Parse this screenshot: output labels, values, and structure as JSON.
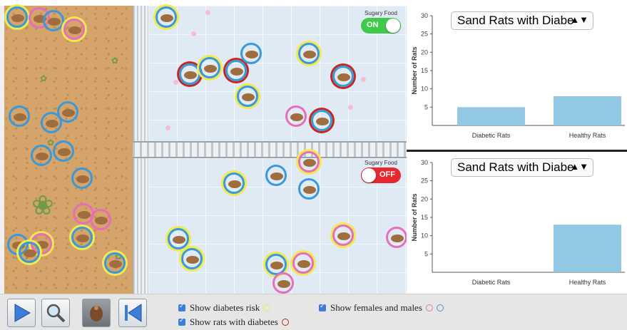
{
  "toggles": {
    "top": {
      "label": "Sugary Food",
      "state": "ON"
    },
    "bottom": {
      "label": "Sugary Food",
      "state": "OFF"
    }
  },
  "charts": {
    "top": {
      "dropdown_value": "Sand Rats with Diabe"
    },
    "bottom": {
      "dropdown_value": "Sand Rats with Diabe"
    }
  },
  "chart_data": [
    {
      "type": "bar",
      "title": "",
      "categories": [
        "Diabetic Rats",
        "Healthy Rats"
      ],
      "values": [
        5,
        8
      ],
      "ylabel": "Number of Rats",
      "yticks": [
        5,
        10,
        15,
        20,
        25,
        30
      ],
      "ylim": [
        0,
        30
      ],
      "color": "#93c8e4"
    },
    {
      "type": "bar",
      "title": "",
      "categories": [
        "Diabetic Rats",
        "Healthy Rats"
      ],
      "values": [
        0,
        13
      ],
      "ylabel": "Number of Rats",
      "yticks": [
        5,
        10,
        15,
        20,
        25,
        30
      ],
      "ylim": [
        0,
        30
      ],
      "color": "#93c8e4"
    }
  ],
  "controls": {
    "buttons": [
      {
        "name": "play-button",
        "icon": "play-icon"
      },
      {
        "name": "magnify-button",
        "icon": "magnifier-icon"
      },
      {
        "name": "rat-button",
        "icon": "rat-icon"
      },
      {
        "name": "reset-button",
        "icon": "rewind-icon"
      }
    ],
    "options": {
      "risk": "Show diabetes risk",
      "diabetes": "Show rats with diabetes",
      "sex": "Show females and males"
    },
    "colors": {
      "risk": "#f1e94e",
      "diabetes": "#c8261f",
      "female": "#e66fb8",
      "male": "#3a9ad9",
      "accent": "#3b7dd8"
    }
  }
}
